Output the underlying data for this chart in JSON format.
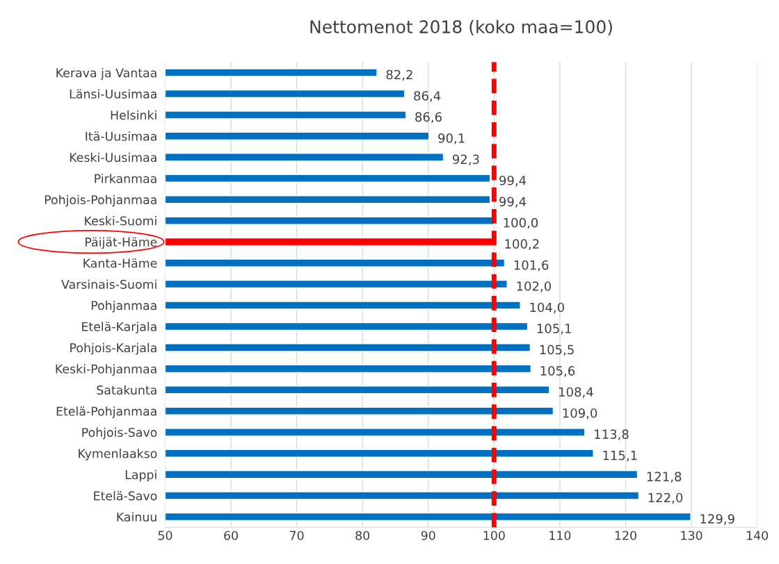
{
  "chart_data": {
    "type": "bar",
    "orientation": "horizontal",
    "title": "Nettomenot 2018 (koko maa=100)",
    "categories": [
      "Kerava ja Vantaa",
      "Länsi-Uusimaa",
      "Helsinki",
      "Itä-Uusimaa",
      "Keski-Uusimaa",
      "Pirkanmaa",
      "Pohjois-Pohjanmaa",
      "Keski-Suomi",
      "Päijät-Häme",
      "Kanta-Häme",
      "Varsinais-Suomi",
      "Pohjanmaa",
      "Etelä-Karjala",
      "Pohjois-Karjala",
      "Keski-Pohjanmaa",
      "Satakunta",
      "Etelä-Pohjanmaa",
      "Pohjois-Savo",
      "Kymenlaakso",
      "Lappi",
      "Etelä-Savo",
      "Kainuu"
    ],
    "values": [
      82.2,
      86.4,
      86.6,
      90.1,
      92.3,
      99.4,
      99.4,
      100.0,
      100.2,
      101.6,
      102.0,
      104.0,
      105.1,
      105.5,
      105.6,
      108.4,
      109.0,
      113.8,
      115.1,
      121.8,
      122.0,
      129.9
    ],
    "value_labels": [
      "82,2",
      "86,4",
      "86,6",
      "90,1",
      "92,3",
      "99,4",
      "99,4",
      "100,0",
      "100,2",
      "101,6",
      "102,0",
      "104,0",
      "105,1",
      "105,5",
      "105,6",
      "108,4",
      "109,0",
      "113,8",
      "115,1",
      "121,8",
      "122,0",
      "129,9"
    ],
    "colors": [
      "#0070c0",
      "#0070c0",
      "#0070c0",
      "#0070c0",
      "#0070c0",
      "#0070c0",
      "#0070c0",
      "#0070c0",
      "#ff0000",
      "#0070c0",
      "#0070c0",
      "#0070c0",
      "#0070c0",
      "#0070c0",
      "#0070c0",
      "#0070c0",
      "#0070c0",
      "#0070c0",
      "#0070c0",
      "#0070c0",
      "#0070c0",
      "#0070c0"
    ],
    "xlim": [
      50,
      140
    ],
    "xticks": [
      50,
      60,
      70,
      80,
      90,
      100,
      110,
      120,
      130,
      140
    ],
    "grid": "x",
    "legend": false,
    "ref_lines": [
      {
        "axis": "x",
        "value": 100,
        "color": "#ff0000",
        "line_style": "dashed"
      }
    ]
  }
}
